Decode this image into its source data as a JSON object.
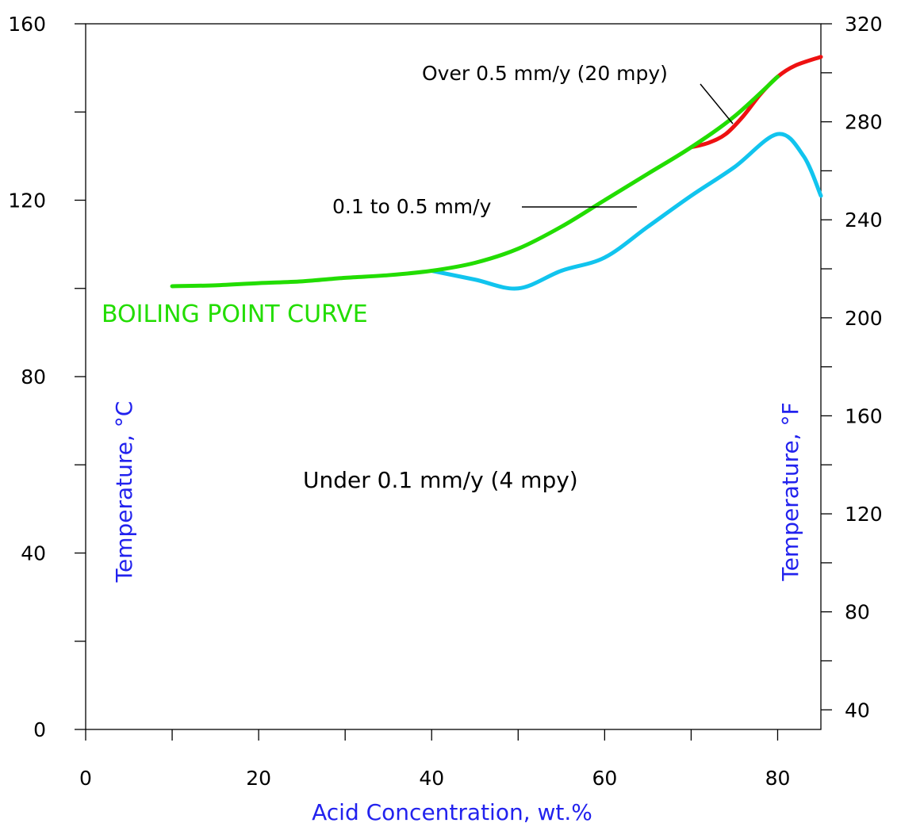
{
  "chart_data": {
    "type": "line",
    "xlabel": "Acid Concentration, wt.%",
    "ylabel": "Temperature, °C",
    "y2label": "Temperature, °F",
    "xlim": [
      0,
      85
    ],
    "ylim": [
      0,
      160
    ],
    "y2lim": [
      32,
      320
    ],
    "x_ticks_labeled": [
      "0",
      "20",
      "40",
      "60",
      "80"
    ],
    "y_ticks_labeled": [
      "0",
      "40",
      "80",
      "120",
      "160"
    ],
    "y2_ticks_labeled": [
      "40",
      "80",
      "120",
      "160",
      "200",
      "240",
      "280",
      "320"
    ],
    "grid": false,
    "colors": {
      "boiling": "#22dd00",
      "upper": "#ee1111",
      "lower": "#11c4ee",
      "axis_label": "#2222ee"
    },
    "annotations": {
      "boiling": "BOILING POINT CURVE",
      "over": "Over 0.5 mm/y (20 mpy)",
      "mid": "0.1 to 0.5 mm/y",
      "under": "Under 0.1 mm/y (4 mpy)"
    },
    "series": [
      {
        "x": [
          10,
          15,
          20,
          25,
          30,
          35,
          40,
          45,
          50,
          55,
          60,
          65,
          70,
          75,
          80
        ],
        "y": [
          100.5,
          100.7,
          101.2,
          101.6,
          102.4,
          103,
          104,
          105.8,
          109,
          114,
          120,
          126,
          132,
          139,
          148
        ]
      },
      {
        "x": [
          70,
          72,
          74,
          76,
          78,
          80,
          82,
          85
        ],
        "y": [
          132,
          133,
          135,
          139,
          144,
          148,
          150.5,
          152.5
        ]
      },
      {
        "x": [
          40,
          45,
          50,
          55,
          60,
          65,
          70,
          75,
          80,
          83,
          85
        ],
        "y": [
          104,
          102,
          100,
          104,
          107,
          114,
          121,
          127.5,
          135,
          130,
          121
        ]
      }
    ]
  }
}
